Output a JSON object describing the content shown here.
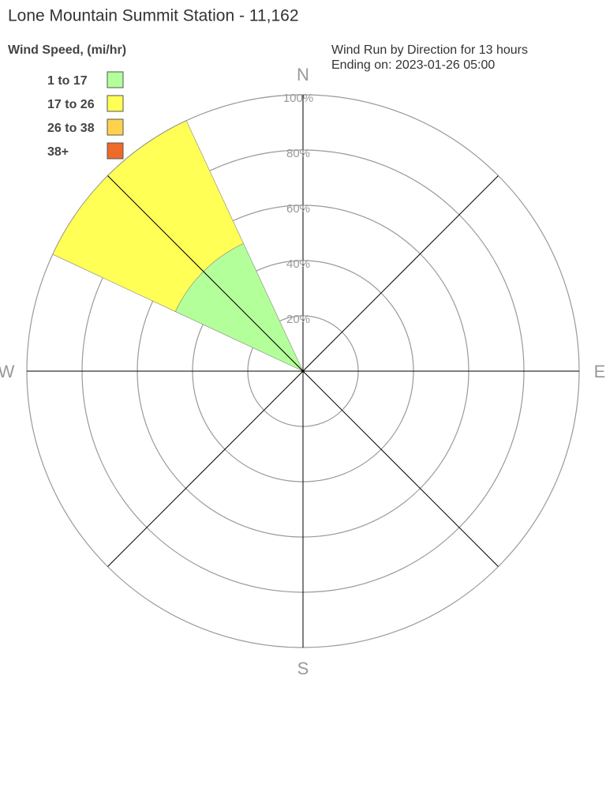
{
  "chart_data": {
    "type": "windrose",
    "title": "Lone Mountain Summit Station - 11,162",
    "subtitle": [
      "Wind Run by Direction for 13 hours",
      "Ending on: 2023-01-26 05:00"
    ],
    "legend_title": "Wind Speed, (mi/hr)",
    "compass": [
      "N",
      "E",
      "S",
      "W"
    ],
    "x": [
      305,
      325
    ],
    "series": [
      {
        "name": "1 to 17",
        "color": "#b3ff99",
        "values": [
          51,
          51
        ]
      },
      {
        "name": "17 to 26",
        "color": "#ffff55",
        "values": [
          49,
          49
        ]
      },
      {
        "name": "26 to 38",
        "color": "#ffd24d",
        "values": [
          0,
          0
        ]
      },
      {
        "name": "38+",
        "color": "#ee6a2a",
        "values": [
          0,
          0
        ]
      }
    ],
    "rlim": [
      0,
      100
    ],
    "rticks": [
      {
        "value": 20,
        "label": "20%"
      },
      {
        "value": 40,
        "label": "40%"
      },
      {
        "value": 60,
        "label": "60%"
      },
      {
        "value": 80,
        "label": "80%"
      },
      {
        "value": 100,
        "label": "100%"
      }
    ]
  }
}
